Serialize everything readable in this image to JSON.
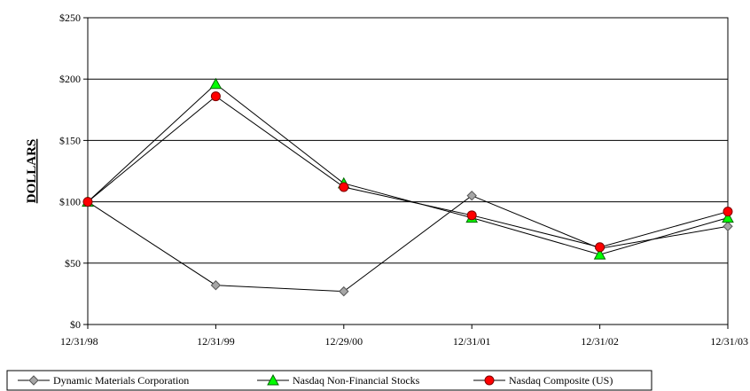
{
  "chart_data": {
    "type": "line",
    "title": "",
    "ylabel": "DOLLARS",
    "xlabel": "",
    "categories": [
      "12/31/98",
      "12/31/99",
      "12/29/00",
      "12/31/01",
      "12/31/02",
      "12/31/03"
    ],
    "y_ticks": [
      0,
      50,
      100,
      150,
      200,
      250
    ],
    "y_tick_labels": [
      "$0",
      "$50",
      "$100",
      "$150",
      "$200",
      "$250"
    ],
    "ylim": [
      0,
      250
    ],
    "grid": true,
    "legend_position": "bottom",
    "series": [
      {
        "name": "Dynamic Materials Corporation",
        "marker": "diamond",
        "color": "#a6a6a6",
        "values": [
          100,
          32,
          27,
          105,
          62,
          80
        ]
      },
      {
        "name": "Nasdaq Non-Financial Stocks",
        "marker": "triangle",
        "color": "#00ff00",
        "values": [
          100,
          196,
          115,
          87,
          57,
          87
        ]
      },
      {
        "name": "Nasdaq Composite (US)",
        "marker": "circle",
        "color": "#ff0000",
        "values": [
          100,
          186,
          112,
          89,
          63,
          92
        ]
      }
    ]
  }
}
